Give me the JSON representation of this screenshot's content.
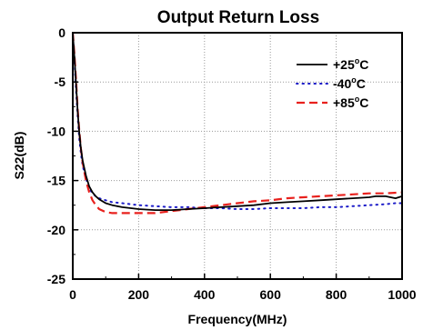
{
  "chart_data": {
    "type": "line",
    "title": "Output Return Loss",
    "xlabel": "Frequency(MHz)",
    "ylabel": "S22(dB)",
    "xlim": [
      0,
      1000
    ],
    "ylim": [
      -25,
      0
    ],
    "xticks": [
      0,
      200,
      400,
      600,
      800,
      1000
    ],
    "yticks": [
      0,
      -5,
      -10,
      -15,
      -20,
      -25
    ],
    "grid": true,
    "legend_position": "top-right",
    "series": [
      {
        "name": "+25",
        "name_sup": "o",
        "name_suffix": "C",
        "color": "#000000",
        "style": "solid",
        "x": [
          0,
          5,
          10,
          15,
          20,
          25,
          30,
          40,
          50,
          60,
          70,
          80,
          100,
          120,
          150,
          200,
          250,
          300,
          350,
          400,
          450,
          500,
          550,
          600,
          650,
          700,
          750,
          800,
          850,
          900,
          920,
          950,
          980,
          1000
        ],
        "y": [
          0,
          -2.5,
          -5.2,
          -8,
          -10.2,
          -11.8,
          -13,
          -14.5,
          -15.6,
          -16.2,
          -16.6,
          -16.9,
          -17.3,
          -17.5,
          -17.7,
          -17.9,
          -18,
          -18,
          -17.9,
          -17.8,
          -17.7,
          -17.6,
          -17.5,
          -17.3,
          -17.2,
          -17.1,
          -17,
          -16.9,
          -16.8,
          -16.7,
          -16.6,
          -16.6,
          -16.8,
          -16.6
        ]
      },
      {
        "name": "-40",
        "name_sup": "o",
        "name_suffix": "C",
        "color": "#1c1cc8",
        "style": "dotted",
        "x": [
          0,
          5,
          10,
          15,
          20,
          25,
          30,
          40,
          50,
          60,
          70,
          80,
          100,
          120,
          150,
          200,
          250,
          300,
          350,
          400,
          450,
          500,
          550,
          600,
          650,
          700,
          750,
          800,
          850,
          900,
          950,
          980,
          1000
        ],
        "y": [
          0,
          -2.8,
          -5.8,
          -8.5,
          -10.8,
          -12.3,
          -13.5,
          -14.8,
          -15.8,
          -16.3,
          -16.6,
          -16.8,
          -17,
          -17.2,
          -17.3,
          -17.5,
          -17.6,
          -17.7,
          -17.7,
          -17.8,
          -17.8,
          -17.9,
          -17.9,
          -17.8,
          -17.8,
          -17.8,
          -17.7,
          -17.7,
          -17.6,
          -17.5,
          -17.4,
          -17.3,
          -17.3
        ]
      },
      {
        "name": "+85",
        "name_sup": "o",
        "name_suffix": "C",
        "color": "#e8211d",
        "style": "dashed",
        "x": [
          0,
          5,
          10,
          15,
          20,
          25,
          30,
          40,
          50,
          60,
          70,
          80,
          100,
          120,
          150,
          200,
          250,
          300,
          350,
          400,
          450,
          500,
          550,
          600,
          650,
          700,
          750,
          800,
          850,
          900,
          950,
          1000
        ],
        "y": [
          0,
          -2.2,
          -4.8,
          -7.8,
          -10,
          -11.8,
          -13.2,
          -15,
          -16.2,
          -17,
          -17.5,
          -17.9,
          -18.2,
          -18.3,
          -18.3,
          -18.3,
          -18.3,
          -18.1,
          -17.9,
          -17.7,
          -17.5,
          -17.3,
          -17.1,
          -17,
          -16.8,
          -16.7,
          -16.6,
          -16.5,
          -16.4,
          -16.3,
          -16.3,
          -16.2
        ]
      }
    ]
  }
}
